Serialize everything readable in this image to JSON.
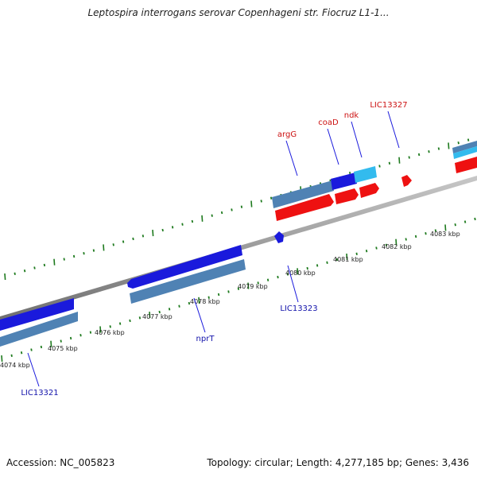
{
  "title": "Leptospira interrogans serovar Copenhageni str. Fiocruz L1-1...",
  "footer": {
    "accession": "Accession: NC_005823",
    "topology": "Topology: circular; Length: 4,277,185 bp; Genes: 3,436"
  },
  "colors": {
    "backbone": "#8a8a8a",
    "tick": "#1e7a1e",
    "forward_label": "#cc1111",
    "reverse_label": "#1111aa",
    "gene_blue": "#1a1adc",
    "gene_steel": "#4f82b4",
    "gene_cyan": "#33bbee",
    "gene_red": "#ee1111"
  },
  "kbp_labels": [
    "4074 kbp",
    "4075 kbp",
    "4076 kbp",
    "4077 kbp",
    "4078 kbp",
    "4079 kbp",
    "4080 kbp",
    "4081 kbp",
    "4082 kbp",
    "4083 kbp"
  ],
  "forward_gene_labels": [
    "argG",
    "coaD",
    "ndk",
    "LIC13327"
  ],
  "reverse_gene_labels": [
    "LIC13321",
    "nprT",
    "LIC13323"
  ]
}
